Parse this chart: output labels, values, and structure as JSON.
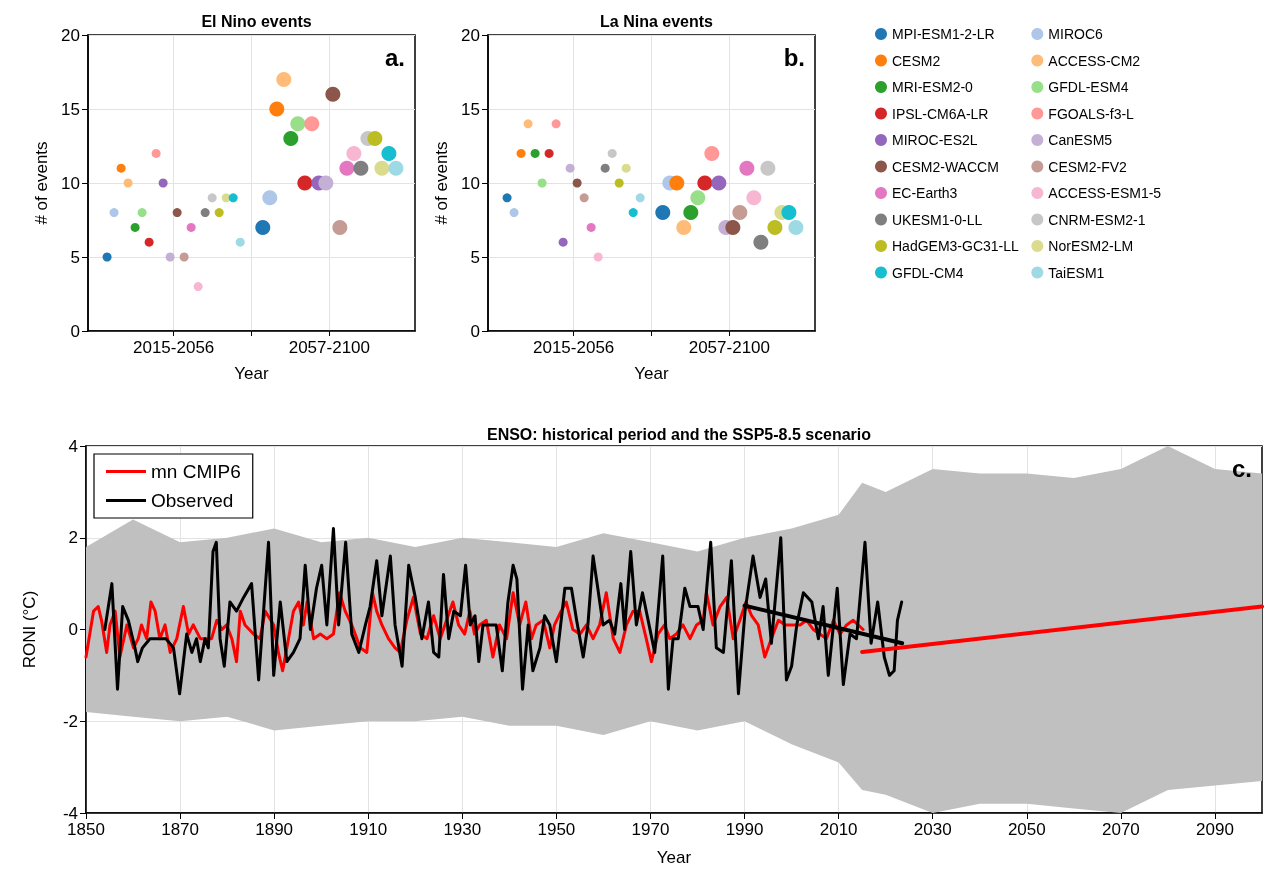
{
  "chart_data": [
    {
      "type": "scatter",
      "title": "El Nino events",
      "xlabel": "Year",
      "ylabel": "# of events",
      "categories": [
        "2015-2056",
        "2057-2100"
      ],
      "ylim": [
        0,
        20
      ],
      "yticks": [
        0,
        5,
        10,
        15,
        20
      ],
      "grid": true,
      "marker": "circle",
      "annotations": [
        "a."
      ],
      "series": [
        {
          "color": "#1f77b4",
          "values": [
            5,
            7
          ]
        },
        {
          "color": "#aec7e8",
          "values": [
            8,
            9
          ]
        },
        {
          "color": "#ff7f0e",
          "values": [
            11,
            15
          ]
        },
        {
          "color": "#ffbb78",
          "values": [
            10,
            17
          ]
        },
        {
          "color": "#2ca02c",
          "values": [
            7,
            13
          ]
        },
        {
          "color": "#98df8a",
          "values": [
            8,
            14
          ]
        },
        {
          "color": "#d62728",
          "values": [
            6,
            10
          ]
        },
        {
          "color": "#ff9896",
          "values": [
            12,
            14
          ]
        },
        {
          "color": "#9467bd",
          "values": [
            10,
            10
          ]
        },
        {
          "color": "#c5b0d5",
          "values": [
            5,
            10
          ]
        },
        {
          "color": "#8c564b",
          "values": [
            8,
            16
          ]
        },
        {
          "color": "#c49c94",
          "values": [
            5,
            7
          ]
        },
        {
          "color": "#e377c2",
          "values": [
            7,
            11
          ]
        },
        {
          "color": "#f7b6d2",
          "values": [
            3,
            12
          ]
        },
        {
          "color": "#7f7f7f",
          "values": [
            8,
            11
          ]
        },
        {
          "color": "#c7c7c7",
          "values": [
            9,
            13
          ]
        },
        {
          "color": "#bcbd22",
          "values": [
            8,
            13
          ]
        },
        {
          "color": "#dbdb8d",
          "values": [
            9,
            11
          ]
        },
        {
          "color": "#17becf",
          "values": [
            9,
            12
          ]
        },
        {
          "color": "#9edae5",
          "values": [
            6,
            11
          ]
        }
      ]
    },
    {
      "type": "scatter",
      "title": "La Nina events",
      "xlabel": "Year",
      "ylabel": "# of events",
      "categories": [
        "2015-2056",
        "2057-2100"
      ],
      "ylim": [
        0,
        20
      ],
      "yticks": [
        0,
        5,
        10,
        15,
        20
      ],
      "grid": true,
      "marker": "circle",
      "legend": "right",
      "annotations": [
        "b."
      ],
      "series": [
        {
          "name": "MPI-ESM1-2-LR",
          "color": "#1f77b4",
          "values": [
            9,
            8
          ]
        },
        {
          "name": "MIROC6",
          "color": "#aec7e8",
          "values": [
            8,
            10
          ]
        },
        {
          "name": "CESM2",
          "color": "#ff7f0e",
          "values": [
            12,
            10
          ]
        },
        {
          "name": "ACCESS-CM2",
          "color": "#ffbb78",
          "values": [
            14,
            7
          ]
        },
        {
          "name": "MRI-ESM2-0",
          "color": "#2ca02c",
          "values": [
            12,
            8
          ]
        },
        {
          "name": "GFDL-ESM4",
          "color": "#98df8a",
          "values": [
            10,
            9
          ]
        },
        {
          "name": "IPSL-CM6A-LR",
          "color": "#d62728",
          "values": [
            12,
            10
          ]
        },
        {
          "name": "FGOALS-f3-L",
          "color": "#ff9896",
          "values": [
            14,
            12
          ]
        },
        {
          "name": "MIROC-ES2L",
          "color": "#9467bd",
          "values": [
            6,
            10
          ]
        },
        {
          "name": "CanESM5",
          "color": "#c5b0d5",
          "values": [
            11,
            7
          ]
        },
        {
          "name": "CESM2-WACCM",
          "color": "#8c564b",
          "values": [
            10,
            7
          ]
        },
        {
          "name": "CESM2-FV2",
          "color": "#c49c94",
          "values": [
            9,
            8
          ]
        },
        {
          "name": "EC-Earth3",
          "color": "#e377c2",
          "values": [
            7,
            11
          ]
        },
        {
          "name": "ACCESS-ESM1-5",
          "color": "#f7b6d2",
          "values": [
            5,
            9
          ]
        },
        {
          "name": "UKESM1-0-LL",
          "color": "#7f7f7f",
          "values": [
            11,
            6
          ]
        },
        {
          "name": "CNRM-ESM2-1",
          "color": "#c7c7c7",
          "values": [
            12,
            11
          ]
        },
        {
          "name": "HadGEM3-GC31-LL",
          "color": "#bcbd22",
          "values": [
            10,
            7
          ]
        },
        {
          "name": "NorESM2-LM",
          "color": "#dbdb8d",
          "values": [
            11,
            8
          ]
        },
        {
          "name": "GFDL-CM4",
          "color": "#17becf",
          "values": [
            8,
            8
          ]
        },
        {
          "name": "TaiESM1",
          "color": "#9edae5",
          "values": [
            9,
            7
          ]
        }
      ]
    },
    {
      "type": "line",
      "title": "ENSO: historical period and the SSP5-8.5 scenario",
      "xlabel": "Year",
      "ylabel": "RONI (°C)",
      "xlim": [
        1850,
        2100
      ],
      "xticks": [
        1850,
        1870,
        1890,
        1910,
        1930,
        1950,
        1970,
        1990,
        2010,
        2030,
        2050,
        2070,
        2090
      ],
      "ylim": [
        -4,
        4
      ],
      "yticks": [
        -4,
        -2,
        0,
        2,
        4
      ],
      "grid": true,
      "legend": "top left",
      "marker": "none",
      "line_style": "solid",
      "annotations": [
        "c."
      ],
      "series": [
        {
          "color": "#c0c0c0",
          "x": [
            1850,
            1860,
            1870,
            1880,
            1890,
            1900,
            1910,
            1920,
            1930,
            1940,
            1950,
            1960,
            1970,
            1980,
            1990,
            2000,
            2010,
            2015,
            2020,
            2030,
            2040,
            2050,
            2060,
            2070,
            2080,
            2090,
            2100
          ],
          "values": [
            null,
            null,
            null,
            null,
            null,
            null,
            null,
            null,
            null,
            null,
            null,
            null,
            null,
            null,
            null,
            null,
            null,
            null,
            null,
            null,
            null,
            null,
            null,
            null,
            null,
            null,
            null
          ],
          "lower": [
            -1.8,
            -1.9,
            -2.0,
            -1.9,
            -2.2,
            -2.1,
            -2.0,
            -2.0,
            -1.9,
            -2.1,
            -2.1,
            -2.3,
            -2.0,
            -2.2,
            -2.0,
            -2.5,
            -2.9,
            -3.5,
            -3.6,
            -4.0,
            -3.8,
            -3.8,
            -3.9,
            -4.0,
            -3.5,
            -3.4,
            -3.3
          ],
          "upper": [
            1.8,
            2.4,
            1.9,
            2.0,
            2.2,
            1.9,
            2.0,
            1.8,
            2.0,
            1.9,
            1.8,
            2.1,
            1.9,
            1.7,
            2.0,
            2.2,
            2.5,
            3.2,
            3.0,
            3.5,
            3.4,
            3.4,
            3.3,
            3.5,
            4.0,
            3.5,
            3.4
          ]
        },
        {
          "name": "mn CMIP6",
          "color": "#ff0000",
          "x": [
            1850,
            1851.6,
            1852.6,
            1853.3,
            1854.4,
            1855.1,
            1856.2,
            1857.2,
            1858.7,
            1860.1,
            1861.1,
            1861.8,
            1862.9,
            1863.8,
            1864.7,
            1865.7,
            1866.8,
            1867.9,
            1869.3,
            1870.7,
            1871.8,
            1872.8,
            1874.3,
            1875.7,
            1876.7,
            1877.8,
            1878.9,
            1879.9,
            1881,
            1882,
            1882.8,
            1883.8,
            1885.6,
            1887,
            1888.1,
            1889.9,
            1890.9,
            1891.8,
            1892.7,
            1894.1,
            1895.2,
            1896.2,
            1897,
            1898.4,
            1899.8,
            1901.2,
            1902.6,
            1903.9,
            1905.1,
            1906.5,
            1908.3,
            1909.7,
            1910.9,
            1911.8,
            1912.9,
            1914.3,
            1915.7,
            1916.8,
            1918.2,
            1919.6,
            1921.1,
            1922.5,
            1923.9,
            1925.3,
            1926.3,
            1928,
            1929.2,
            1930.5,
            1931.6,
            1932.6,
            1933.7,
            1935.1,
            1936.5,
            1937.9,
            1939.4,
            1940.8,
            1942.2,
            1943.5,
            1944.7,
            1945.7,
            1947.2,
            1948.6,
            1949.6,
            1951,
            1952.1,
            1953.5,
            1955,
            1956.4,
            1957.8,
            1959.2,
            1960.6,
            1962.1,
            1963.5,
            1964.9,
            1966.3,
            1967.7,
            1969.1,
            1970.2,
            1971.6,
            1973,
            1974.1,
            1975.5,
            1976.9,
            1978.4,
            1979.8,
            1981.2,
            1981.9,
            1983.3,
            1984.8,
            1986.2,
            1987.6,
            1989,
            1990.3,
            1991.5,
            1992.9,
            1994.3,
            1995.7,
            1997.2,
            1998.6,
            2000.4,
            2001.8,
            2003.2,
            2004.6,
            2006,
            2007.4,
            2008.9,
            2010.3,
            2011.7,
            2013.1,
            2015.2
          ],
          "values": [
            -0.6,
            0.4,
            0.5,
            0.2,
            -0.5,
            0.1,
            0.4,
            -0.6,
            0.1,
            -0.4,
            -0.2,
            0.1,
            -0.2,
            0.6,
            0.4,
            -0.2,
            0.1,
            -0.5,
            -0.2,
            0.5,
            -0.1,
            0.1,
            -0.2,
            -0.2,
            -0.2,
            0.2,
            0.0,
            0.1,
            -0.2,
            -0.7,
            0.4,
            0.1,
            -0.1,
            -0.2,
            0.4,
            0.1,
            -0.5,
            -0.9,
            -0.4,
            0.4,
            0.6,
            0.1,
            0.6,
            -0.2,
            -0.1,
            -0.2,
            -0.1,
            0.8,
            0.4,
            0.1,
            -0.4,
            -0.5,
            0.8,
            0.4,
            0.1,
            -0.2,
            -0.4,
            -0.5,
            0.2,
            0.7,
            -0.1,
            -0.2,
            0.3,
            -0.2,
            0.1,
            0.6,
            0.1,
            -0.1,
            0.4,
            -0.1,
            0.1,
            0.2,
            -0.6,
            0.1,
            -0.2,
            0.8,
            0.1,
            0.6,
            -0.2,
            0.1,
            0.2,
            -0.4,
            0.1,
            0.4,
            0.6,
            0.0,
            -0.1,
            0.1,
            -0.2,
            0.1,
            0.8,
            -0.2,
            -0.5,
            0.1,
            0.4,
            0.4,
            -0.2,
            -0.7,
            -0.1,
            0.1,
            -0.2,
            -0.1,
            0.1,
            -0.2,
            0.1,
            0.2,
            0.8,
            0.1,
            0.5,
            0.7,
            -0.2,
            0.2,
            0.6,
            0.3,
            0.1,
            -0.6,
            -0.2,
            0.2,
            0.1,
            0.1,
            0.1,
            0.2,
            0.0,
            -0.1,
            -0.2,
            0.2,
            -0.1,
            0.1,
            0.2,
            0.0
          ]
        },
        {
          "name": "Observed",
          "color": "#000000",
          "x": [
            1854,
            1855.5,
            1856.7,
            1857.8,
            1859,
            1860.4,
            1861,
            1862,
            1863.6,
            1865,
            1867,
            1868.6,
            1869.9,
            1871.4,
            1872.5,
            1873.5,
            1874.3,
            1875.3,
            1876,
            1877,
            1877.7,
            1878.5,
            1879.4,
            1880.6,
            1882,
            1883.5,
            1885.2,
            1886.7,
            1888.8,
            1889.9,
            1891.3,
            1892.7,
            1894.1,
            1895.5,
            1896.6,
            1897.7,
            1899,
            1900.1,
            1901.2,
            1902.6,
            1903.7,
            1905.2,
            1906.5,
            1908,
            1909.4,
            1910.4,
            1911.8,
            1912.9,
            1914.7,
            1915.7,
            1917.2,
            1918.6,
            1920,
            1921.4,
            1922.8,
            1923.9,
            1925,
            1926,
            1927.1,
            1928.2,
            1929.6,
            1930.7,
            1931.7,
            1932.7,
            1933.5,
            1934.4,
            1935.8,
            1937.2,
            1938.5,
            1939.7,
            1940.8,
            1941.6,
            1942.8,
            1944,
            1945,
            1946.5,
            1947.5,
            1948.6,
            1950,
            1951.8,
            1953.2,
            1954.3,
            1955.7,
            1956.7,
            1957.8,
            1958.8,
            1959.9,
            1961.3,
            1962.4,
            1963.7,
            1964.5,
            1965.8,
            1967,
            1968.3,
            1969.7,
            1970.9,
            1972.6,
            1973.8,
            1974.8,
            1975.9,
            1977.3,
            1978.4,
            1980.1,
            1981.2,
            1982.8,
            1984,
            1985.5,
            1987.2,
            1988.7,
            1990.1,
            1991.8,
            1993.3,
            1994.5,
            1995.7,
            1997.7,
            1998.9,
            2000,
            2001.1,
            2002.5,
            2004.3,
            2005.7,
            2006.7,
            2007.8,
            2009.7,
            2011,
            2012.4,
            2013.8,
            2015.6,
            2016.9,
            2018.3,
            2019.7,
            2020.8,
            2021.8,
            2022.5,
            2023.4
          ],
          "values": [
            0.0,
            1.0,
            -1.3,
            0.5,
            0.2,
            -0.4,
            -0.7,
            -0.4,
            -0.2,
            -0.2,
            -0.2,
            -0.4,
            -1.4,
            -0.1,
            -0.5,
            -0.2,
            -0.7,
            -0.2,
            -0.4,
            1.7,
            1.9,
            -0.2,
            -0.8,
            0.6,
            0.4,
            0.7,
            1.0,
            -1.1,
            1.9,
            -1.0,
            0.6,
            -0.7,
            -0.5,
            -0.2,
            1.4,
            0.0,
            0.9,
            1.4,
            0.1,
            2.2,
            0.1,
            1.9,
            -0.1,
            -0.5,
            0.1,
            0.5,
            1.5,
            0.3,
            1.6,
            0.1,
            -0.8,
            1.4,
            0.7,
            -0.2,
            0.6,
            -0.5,
            -0.6,
            1.2,
            -0.2,
            0.4,
            0.3,
            1.4,
            0.1,
            0.3,
            -0.7,
            0.1,
            0.1,
            0.1,
            -0.9,
            0.6,
            1.4,
            1.1,
            -1.3,
            0.1,
            -0.9,
            -0.4,
            0.3,
            0.1,
            -0.7,
            0.9,
            0.9,
            0.2,
            -0.6,
            0.1,
            1.6,
            0.9,
            0.1,
            0.2,
            -0.1,
            1.0,
            0.0,
            1.7,
            0.1,
            0.8,
            0.1,
            -0.5,
            1.6,
            -1.3,
            -0.2,
            -0.2,
            0.9,
            0.5,
            0.5,
            0.0,
            1.9,
            -0.4,
            -0.5,
            1.5,
            -1.4,
            0.4,
            1.6,
            0.7,
            1.1,
            -0.3,
            2.0,
            -1.1,
            -0.8,
            0.1,
            0.8,
            0.6,
            -0.2,
            0.5,
            -1.0,
            0.9,
            -1.2,
            -0.1,
            -0.2,
            1.9,
            -0.3,
            0.6,
            -0.6,
            -1.0,
            -0.9,
            0.2,
            0.6
          ]
        },
        {
          "color": "#000000",
          "x": [
            1990,
            2023.5
          ],
          "values": [
            0.52,
            -0.3
          ]
        },
        {
          "color": "#ff0000",
          "x": [
            2015,
            2100
          ],
          "values": [
            -0.49,
            0.5
          ]
        }
      ]
    }
  ]
}
